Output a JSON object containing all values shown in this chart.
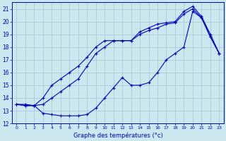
{
  "title": "Graphe des températures (°c)",
  "bg_color": "#cce8ee",
  "grid_color": "#a0c8d4",
  "line_color": "#0000cc",
  "xlim": [
    -0.5,
    23.5
  ],
  "ylim": [
    12,
    21.5
  ],
  "yticks": [
    12,
    13,
    14,
    15,
    16,
    17,
    18,
    19,
    20,
    21
  ],
  "xticks": [
    0,
    1,
    2,
    3,
    4,
    5,
    6,
    7,
    8,
    9,
    10,
    11,
    12,
    13,
    14,
    15,
    16,
    17,
    18,
    19,
    20,
    21,
    22,
    23
  ],
  "series_max": [
    [
      0,
      13.5
    ],
    [
      1,
      13.5
    ],
    [
      2,
      13.4
    ],
    [
      3,
      14.0
    ],
    [
      4,
      15.0
    ],
    [
      5,
      15.5
    ],
    [
      6,
      16.0
    ],
    [
      7,
      16.5
    ],
    [
      8,
      17.2
    ],
    [
      9,
      18.0
    ],
    [
      10,
      18.5
    ],
    [
      11,
      18.5
    ],
    [
      12,
      18.5
    ],
    [
      13,
      18.5
    ],
    [
      14,
      19.2
    ],
    [
      15,
      19.5
    ],
    [
      16,
      19.8
    ],
    [
      17,
      19.9
    ],
    [
      18,
      20.0
    ],
    [
      19,
      20.8
    ],
    [
      20,
      21.2
    ],
    [
      21,
      20.4
    ],
    [
      22,
      19.0
    ],
    [
      23,
      17.5
    ]
  ],
  "series_mean": [
    [
      0,
      13.5
    ],
    [
      1,
      13.4
    ],
    [
      2,
      13.4
    ],
    [
      3,
      13.5
    ],
    [
      4,
      14.0
    ],
    [
      5,
      14.5
    ],
    [
      6,
      15.0
    ],
    [
      7,
      15.5
    ],
    [
      8,
      16.5
    ],
    [
      9,
      17.5
    ],
    [
      10,
      18.0
    ],
    [
      11,
      18.5
    ],
    [
      12,
      18.5
    ],
    [
      13,
      18.5
    ],
    [
      14,
      19.0
    ],
    [
      15,
      19.3
    ],
    [
      16,
      19.5
    ],
    [
      17,
      19.8
    ],
    [
      18,
      19.9
    ],
    [
      19,
      20.6
    ],
    [
      20,
      21.0
    ],
    [
      21,
      20.3
    ],
    [
      22,
      18.8
    ],
    [
      23,
      17.5
    ]
  ],
  "series_min": [
    [
      0,
      13.5
    ],
    [
      1,
      13.4
    ],
    [
      2,
      13.4
    ],
    [
      3,
      12.8
    ],
    [
      4,
      12.7
    ],
    [
      5,
      12.6
    ],
    [
      6,
      12.6
    ],
    [
      7,
      12.6
    ],
    [
      8,
      12.7
    ],
    [
      9,
      13.2
    ],
    [
      10,
      14.0
    ],
    [
      11,
      14.8
    ],
    [
      12,
      15.6
    ],
    [
      13,
      15.0
    ],
    [
      14,
      15.0
    ],
    [
      15,
      15.2
    ],
    [
      16,
      16.0
    ],
    [
      17,
      17.0
    ],
    [
      18,
      17.5
    ],
    [
      19,
      18.0
    ],
    [
      20,
      20.8
    ],
    [
      21,
      20.3
    ],
    [
      22,
      18.8
    ],
    [
      23,
      17.5
    ]
  ]
}
